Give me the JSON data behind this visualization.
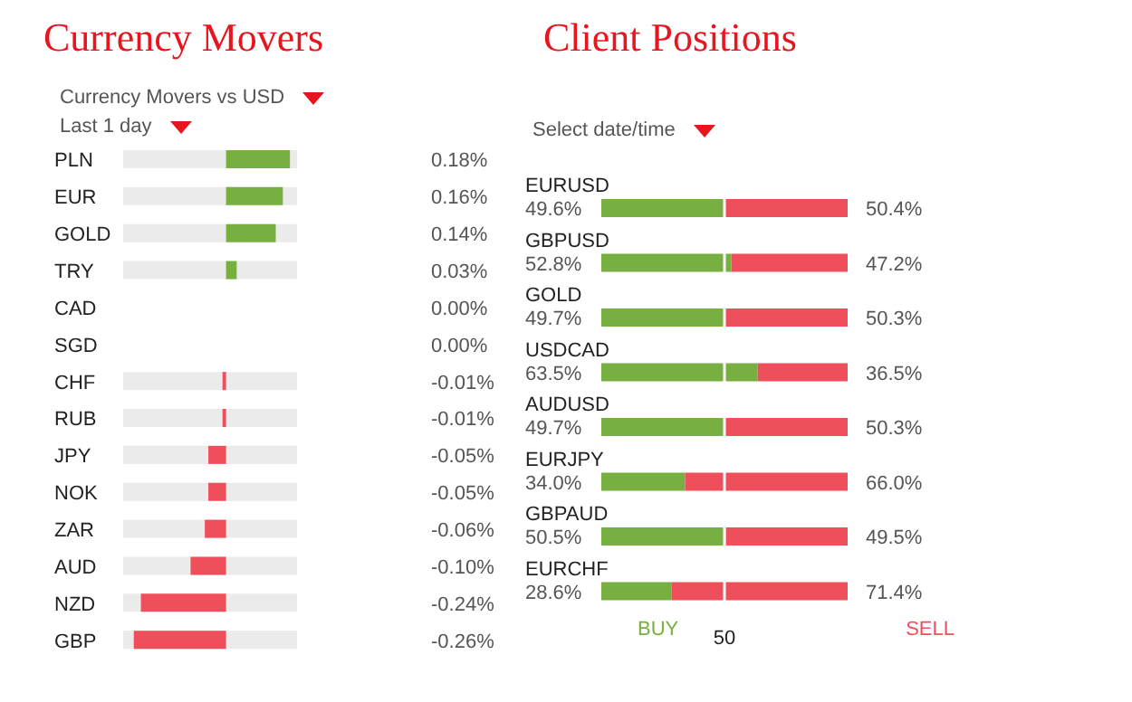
{
  "chart_data": [
    {
      "type": "bar",
      "orientation": "horizontal",
      "title": "Currency Movers",
      "subtitle": "Currency Movers vs USD",
      "annotations": [
        "Last 1 day"
      ],
      "categories": [
        "PLN",
        "EUR",
        "GOLD",
        "TRY",
        "CAD",
        "SGD",
        "CHF",
        "RUB",
        "JPY",
        "NOK",
        "ZAR",
        "AUD",
        "NZD",
        "GBP"
      ],
      "values": [
        0.18,
        0.16,
        0.14,
        0.03,
        0,
        0,
        -0.01,
        -0.01,
        -0.05,
        -0.05,
        -0.06,
        -0.1,
        -0.24,
        -0.26
      ],
      "colors": [
        "#77b041",
        "#77b041",
        "#77b041",
        "#77b041",
        "#77b041",
        "#77b041",
        "#ef4f5a",
        "#ef4f5a",
        "#ef4f5a",
        "#ef4f5a",
        "#ef4f5a",
        "#ef4f5a",
        "#ef4f5a",
        "#ef4f5a"
      ],
      "value_labels": [
        "0.18%",
        "0.16%",
        "0.14%",
        "0.03%",
        "0.00%",
        "0.00%",
        "-0.01%",
        "-0.01%",
        "-0.05%",
        "-0.05%",
        "-0.06%",
        "-0.10%",
        "-0.24%",
        "-0.26%"
      ],
      "xlim": [
        -0.29,
        0.2
      ],
      "tick_labels": "y"
    },
    {
      "type": "bar",
      "orientation": "horizontal",
      "stacked": true,
      "title": "Client Positions",
      "subtitle": "Select date/time",
      "categories": [
        "EURUSD",
        "GBPUSD",
        "GOLD",
        "USDCAD",
        "AUDUSD",
        "EURJPY",
        "GBPAUD",
        "EURCHF"
      ],
      "series": [
        {
          "name": "BUY",
          "color": "#77b041",
          "values": [
            49.6,
            52.8,
            49.7,
            63.5,
            49.7,
            34.0,
            50.5,
            28.6
          ],
          "value_labels": [
            "49.6%",
            "52.8%",
            "49.7%",
            "63.5%",
            "49.7%",
            "34.0%",
            "50.5%",
            "28.6%"
          ]
        },
        {
          "name": "SELL",
          "color": "#ef4f5a",
          "values": [
            50.4,
            47.2,
            50.3,
            36.5,
            50.3,
            66.0,
            49.5,
            71.4
          ],
          "value_labels": [
            "50.4%",
            "47.2%",
            "50.3%",
            "36.5%",
            "50.3%",
            "66.0%",
            "49.5%",
            "71.4%"
          ]
        }
      ],
      "xlim": [
        0,
        100
      ],
      "tick_labels": "y",
      "ref_lines": [
        {
          "axis": "x",
          "value": 50,
          "label": "50",
          "color": "#ffffff"
        }
      ],
      "legend": "bottom"
    }
  ]
}
